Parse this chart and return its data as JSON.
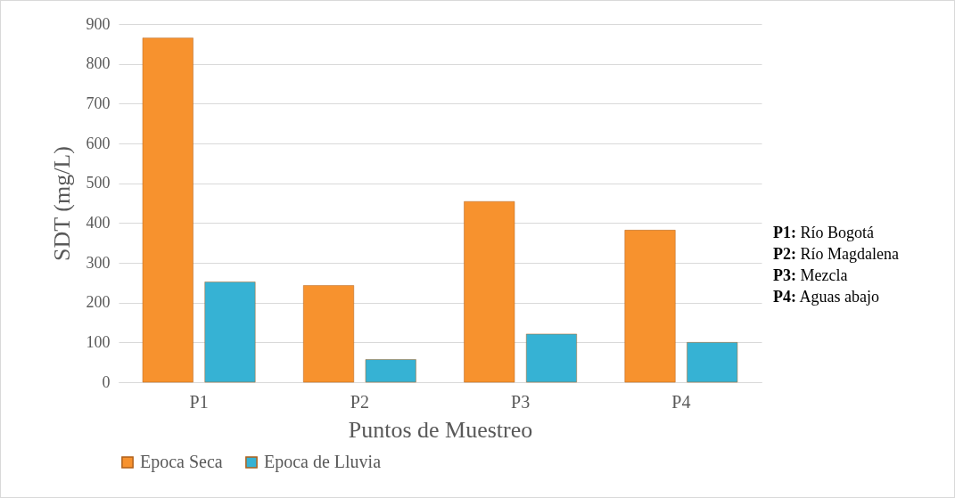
{
  "chart_data": {
    "type": "bar",
    "xlabel": "Puntos de Muestreo",
    "ylabel": "SDT (mg/L)",
    "categories": [
      "P1",
      "P2",
      "P3",
      "P4"
    ],
    "series": [
      {
        "name": "Epoca Seca",
        "color": "#f7922e",
        "values": [
          865,
          243,
          454,
          382
        ]
      },
      {
        "name": "Epoca de Lluvia",
        "color": "#36b2d4",
        "values": [
          252,
          57,
          121,
          100
        ]
      }
    ],
    "ylim": [
      0,
      900
    ],
    "yticks": [
      0,
      100,
      200,
      300,
      400,
      500,
      600,
      700,
      800,
      900
    ],
    "grid": "y",
    "legend": "bottom",
    "annotations": [
      "P1: Río Bogotá",
      "P2: Río Magdalena",
      "P3: Mezcla",
      "P4: Aguas abajo"
    ]
  }
}
